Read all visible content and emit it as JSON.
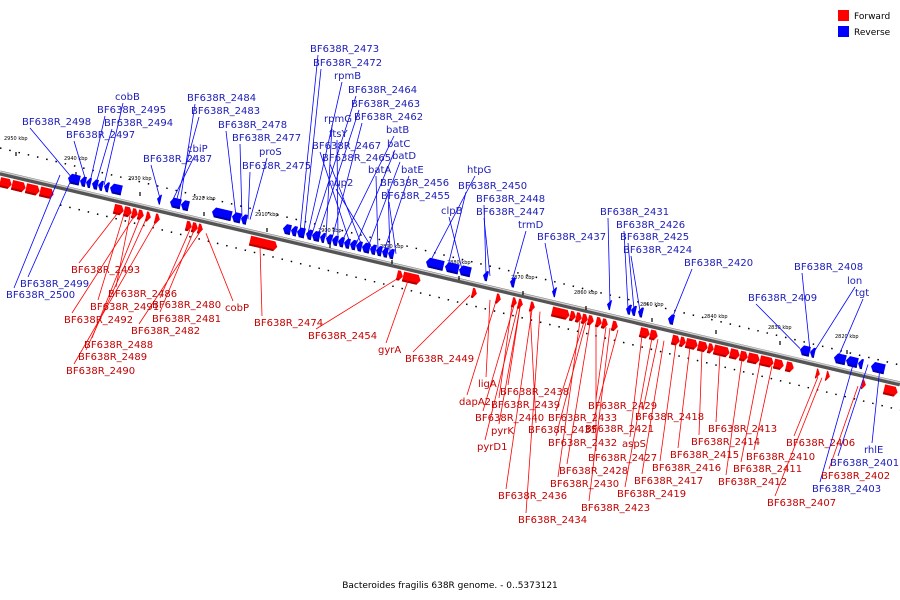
{
  "legend": [
    {
      "label": "Forward",
      "color": "#ff0000"
    },
    {
      "label": "Reverse",
      "color": "#0000ff"
    }
  ],
  "caption": "Bacteroides fragilis 638R genome. - 0..5373121",
  "ticks": [
    "2950 kbp",
    "2940 kbp",
    "2930 kbp",
    "2920 kbp",
    "2910 kbp",
    "2900 kbp",
    "2890 kbp",
    "2880 kbp",
    "2870 kbp",
    "2860 kbp",
    "2850 kbp",
    "2840 kbp",
    "2830 kbp",
    "2820 kbp"
  ],
  "reverse_genes": [
    "BF638R_2473",
    "BF638R_2472",
    "rpmB",
    "BF638R_2464",
    "BF638R_2463",
    "rpmG",
    "BF638R_2462",
    "ftsY",
    "batB",
    "BF638R_2467",
    "batC",
    "BF638R_2465",
    "batD",
    "hup2",
    "batA",
    "batE",
    "BF638R_2456",
    "BF638R_2455",
    "htpG",
    "BF638R_2450",
    "clpB",
    "BF638R_2448",
    "BF638R_2447",
    "trmD",
    "BF638R_2437",
    "BF638R_2431",
    "BF638R_2426",
    "BF638R_2425",
    "BF638R_2424",
    "BF638R_2420",
    "BF638R_2408",
    "lon",
    "BF638R_2409",
    "tgt",
    "cobB",
    "BF638R_2498",
    "BF638R_2495",
    "BF638R_2494",
    "BF638R_2497",
    "BF638R_2484",
    "BF638R_2483",
    "cbiP",
    "BF638R_2487",
    "BF638R_2478",
    "BF638R_2477",
    "proS",
    "BF638R_2475",
    "BF638R_2499",
    "BF638R_2500",
    "rhlE",
    "BF638R_2401",
    "BF638R_2403"
  ],
  "forward_genes": [
    "BF638R_2493",
    "BF638R_2486",
    "BF638R_2491",
    "BF638R_2480",
    "BF638R_2492",
    "BF638R_2481",
    "BF638R_2482",
    "BF638R_2488",
    "BF638R_2489",
    "BF638R_2490",
    "cobP",
    "BF638R_2474",
    "BF638R_2454",
    "gyrA",
    "BF638R_2449",
    "ligA",
    "dapA2",
    "BF638R_2438",
    "BF638R_2439",
    "BF638R_2440",
    "BF638R_2433",
    "BF638R_2429",
    "pyrK",
    "BF638R_2435",
    "BF638R_2421",
    "aspS",
    "BF638R_2418",
    "pyrD1",
    "BF638R_2432",
    "BF638R_2427",
    "BF638R_2428",
    "BF638R_2430",
    "BF638R_2436",
    "BF638R_2434",
    "BF638R_2423",
    "BF638R_2419",
    "BF638R_2417",
    "BF638R_2416",
    "BF638R_2415",
    "BF638R_2414",
    "BF638R_2413",
    "BF638R_2412",
    "BF638R_2411",
    "BF638R_2410",
    "BF638R_2406",
    "BF638R_2407",
    "BF638R_2402"
  ]
}
